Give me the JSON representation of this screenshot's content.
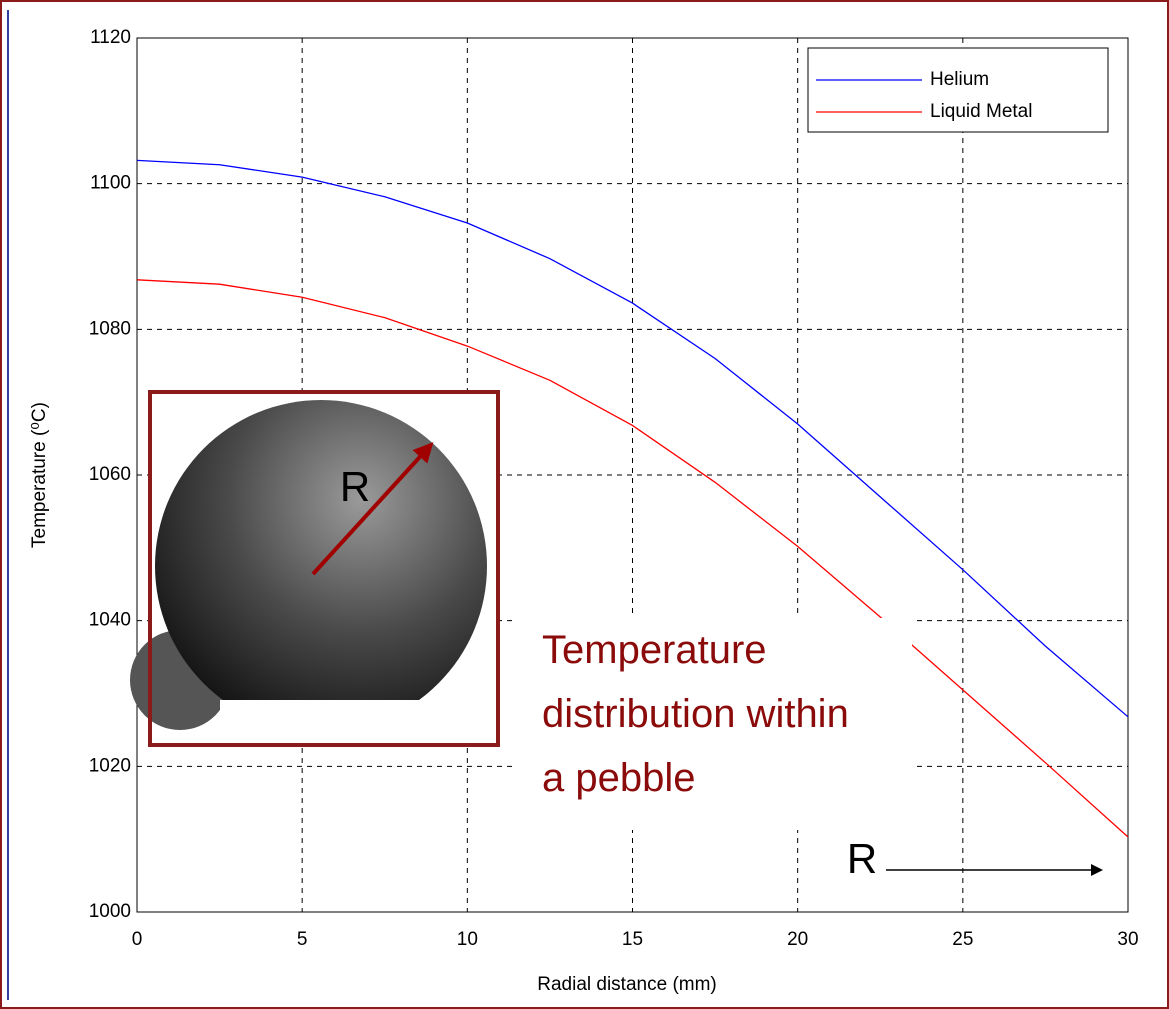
{
  "chart_data": {
    "type": "line",
    "xlabel": "Radial distance (mm)",
    "ylabel": "Temperature (⁰C)",
    "x": [
      0,
      2.5,
      5,
      7.5,
      10,
      12.5,
      15,
      17.5,
      20,
      22.5,
      25,
      27.5,
      30
    ],
    "series": [
      {
        "name": "Helium",
        "color": "#0000ff",
        "values": [
          1103.2,
          1102.6,
          1100.9,
          1098.2,
          1094.6,
          1089.7,
          1083.6,
          1076,
          1067,
          1057,
          1047,
          1036.5,
          1026.8
        ]
      },
      {
        "name": "Liquid Metal",
        "color": "#ff0000",
        "values": [
          1086.8,
          1086.2,
          1084.4,
          1081.6,
          1077.7,
          1073,
          1066.8,
          1059,
          1050.2,
          1040.5,
          1030.5,
          1020.5,
          1010.3
        ]
      }
    ],
    "xlim": [
      0,
      30
    ],
    "xticks": [
      0,
      5,
      10,
      15,
      20,
      25,
      30
    ],
    "ylim": [
      1000,
      1120
    ],
    "yticks": [
      1000,
      1020,
      1040,
      1060,
      1080,
      1100,
      1120
    ],
    "grid": true,
    "legend": "upper right",
    "annotations": [
      "R",
      "Temperature distribution within a pebble",
      "R"
    ]
  }
}
